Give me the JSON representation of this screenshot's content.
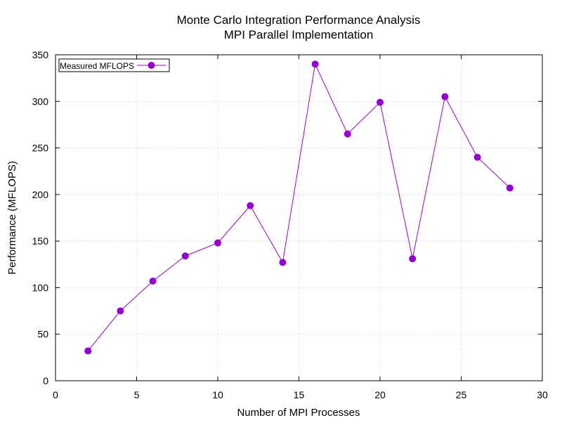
{
  "chart_data": {
    "type": "line",
    "title": [
      "Monte Carlo Integration Performance Analysis",
      "MPI Parallel Implementation"
    ],
    "xlabel": "Number of MPI Processes",
    "ylabel": "Performance (MFLOPS)",
    "xlim": [
      0,
      30
    ],
    "ylim": [
      0,
      350
    ],
    "xticks": [
      0,
      5,
      10,
      15,
      20,
      25,
      30
    ],
    "yticks": [
      0,
      50,
      100,
      150,
      200,
      250,
      300,
      350
    ],
    "grid": true,
    "legend_position": "top-left",
    "series": [
      {
        "name": "Measured MFLOPS",
        "color": "#9400d3",
        "marker": "circle",
        "x": [
          2,
          4,
          6,
          8,
          10,
          12,
          14,
          16,
          18,
          20,
          22,
          24,
          26,
          28
        ],
        "y": [
          32,
          75,
          107,
          134,
          148,
          188,
          127,
          340,
          265,
          299,
          131,
          305,
          240,
          207
        ]
      }
    ]
  }
}
